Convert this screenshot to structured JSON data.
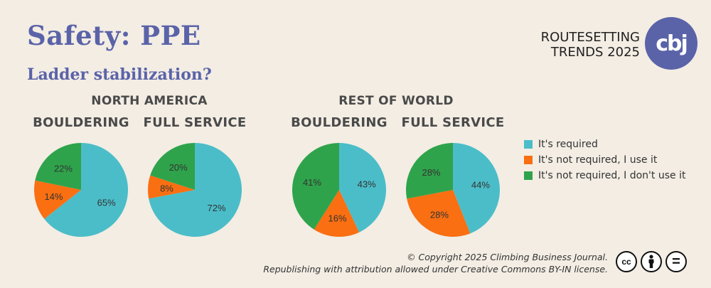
{
  "title": "Safety: PPE",
  "subtitle": "Ladder stabilization?",
  "brand": {
    "line1": "ROUTESETTING",
    "line2": "TRENDS 2025",
    "logo_text": "cbj"
  },
  "regions": [
    "NORTH AMERICA",
    "REST OF WORLD"
  ],
  "colors": {
    "required": "#4bbdc8",
    "not_required_use": "#f96f12",
    "not_required_dont": "#2fa34b"
  },
  "chart_data": {
    "type": "pie",
    "legend": [
      "It's required",
      "It's not required, I use it",
      "It's not required, I don't use it"
    ],
    "legend_position": "right",
    "pies": [
      {
        "region": "NORTH AMERICA",
        "segment": "BOULDERING",
        "values": [
          65,
          14,
          22
        ],
        "labels": [
          "65%",
          "14%",
          "22%"
        ]
      },
      {
        "region": "NORTH AMERICA",
        "segment": "FULL SERVICE",
        "values": [
          72,
          8,
          20
        ],
        "labels": [
          "72%",
          "8%",
          "20%"
        ]
      },
      {
        "region": "REST OF WORLD",
        "segment": "BOULDERING",
        "values": [
          43,
          16,
          41
        ],
        "labels": [
          "43%",
          "16%",
          "41%"
        ]
      },
      {
        "region": "REST OF WORLD",
        "segment": "FULL SERVICE",
        "values": [
          44,
          28,
          28
        ],
        "labels": [
          "44%",
          "28%",
          "28%"
        ]
      }
    ]
  },
  "copyright": {
    "line1": "© Copyright 2025 Climbing Business Journal.",
    "line2": "Republishing with attribution allowed under Creative Commons BY-IN license."
  },
  "license_icons": [
    {
      "icon": "cc-icon",
      "text": "cc"
    },
    {
      "icon": "by-person-icon",
      "text": ""
    },
    {
      "icon": "nd-equals-icon",
      "text": "="
    }
  ]
}
